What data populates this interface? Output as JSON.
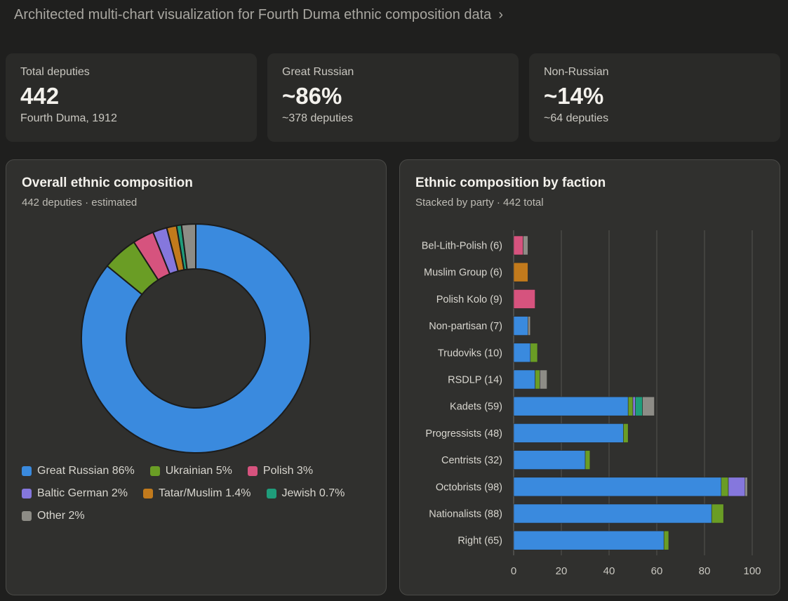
{
  "header": {
    "title": "Architected multi-chart visualization for Fourth Duma ethnic composition data",
    "chevron": "chevron-right-icon"
  },
  "cards": [
    {
      "label": "Total deputies",
      "value": "442",
      "sub": "Fourth Duma, 1912"
    },
    {
      "label": "Great Russian",
      "value": "~86%",
      "sub": "~378 deputies"
    },
    {
      "label": "Non-Russian",
      "value": "~14%",
      "sub": "~64 deputies"
    }
  ],
  "chart_data": [
    {
      "type": "pie",
      "title": "Overall ethnic composition",
      "subtitle": "442 deputies · estimated",
      "slices": [
        {
          "name": "Great Russian",
          "value": 86,
          "label": "Great Russian 86%",
          "color": "#3a8ade"
        },
        {
          "name": "Ukrainian",
          "value": 5,
          "label": "Ukrainian 5%",
          "color": "#6a9d25"
        },
        {
          "name": "Polish",
          "value": 3,
          "label": "Polish 3%",
          "color": "#d6537e"
        },
        {
          "name": "Baltic German",
          "value": 2,
          "label": "Baltic German 2%",
          "color": "#8577dd"
        },
        {
          "name": "Tatar/Muslim",
          "value": 1.4,
          "label": "Tatar/Muslim 1.4%",
          "color": "#c27a1c"
        },
        {
          "name": "Jewish",
          "value": 0.7,
          "label": "Jewish 0.7%",
          "color": "#1f9d7b"
        },
        {
          "name": "Other",
          "value": 2,
          "label": "Other 2%",
          "color": "#8d8c86"
        }
      ]
    },
    {
      "type": "bar",
      "stacked": true,
      "orientation": "horizontal",
      "title": "Ethnic composition by faction",
      "subtitle": "Stacked by party · 442 total",
      "xlim": [
        0,
        100
      ],
      "xticks": [
        0,
        20,
        40,
        60,
        80,
        100
      ],
      "grid": true,
      "series_names": [
        "Great Russian",
        "Ukrainian",
        "Polish",
        "Baltic German",
        "Tatar/Muslim",
        "Jewish",
        "Other"
      ],
      "categories": [
        "Bel-Lith-Polish (6)",
        "Muslim Group (6)",
        "Polish Kolo (9)",
        "Non-partisan (7)",
        "Trudoviks (10)",
        "RSDLP (14)",
        "Kadets (59)",
        "Progressists (48)",
        "Centrists (32)",
        "Octobrists (98)",
        "Nationalists (88)",
        "Right (65)"
      ],
      "values": [
        [
          0,
          0,
          4,
          0,
          0,
          0,
          2
        ],
        [
          0,
          0,
          0,
          0,
          6,
          0,
          0
        ],
        [
          0,
          0,
          9,
          0,
          0,
          0,
          0
        ],
        [
          6,
          0,
          0,
          0,
          0,
          0,
          1
        ],
        [
          7,
          3,
          0,
          0,
          0,
          0,
          0
        ],
        [
          9,
          2,
          0,
          0,
          0,
          0,
          3
        ],
        [
          48,
          2,
          0,
          1,
          0,
          3,
          5
        ],
        [
          46,
          2,
          0,
          0,
          0,
          0,
          0
        ],
        [
          30,
          2,
          0,
          0,
          0,
          0,
          0
        ],
        [
          87,
          3,
          0,
          7,
          0,
          0,
          1
        ],
        [
          83,
          5,
          0,
          0,
          0,
          0,
          0
        ],
        [
          63,
          2,
          0,
          0,
          0,
          0,
          0
        ]
      ]
    }
  ]
}
